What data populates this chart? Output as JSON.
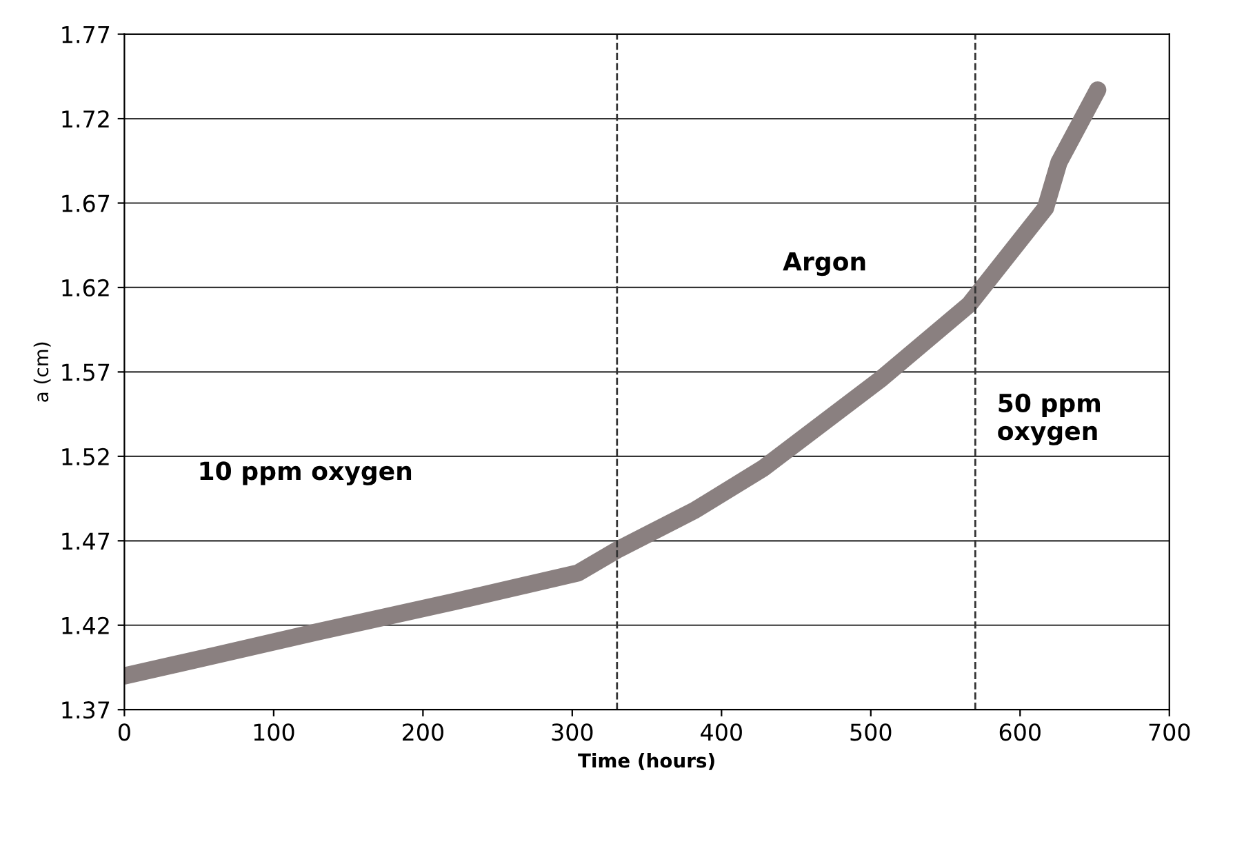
{
  "chart_data": {
    "type": "line",
    "xlabel": "Time (hours)",
    "ylabel": "a (cm)",
    "x": [
      0,
      60,
      129,
      221,
      304,
      331,
      382,
      428,
      507,
      566,
      617,
      626,
      652
    ],
    "series": [
      {
        "color": "#8a8080",
        "values": [
          1.39,
          1.402,
          1.416,
          1.434,
          1.451,
          1.465,
          1.488,
          1.513,
          1.566,
          1.61,
          1.667,
          1.694,
          1.737
        ]
      }
    ],
    "xlim": [
      0,
      700
    ],
    "xticks": [
      0,
      100,
      200,
      300,
      400,
      500,
      600,
      700
    ],
    "ylim": [
      1.37,
      1.77
    ],
    "yticks": [
      {
        "value": 1.37,
        "label": "1.37"
      },
      {
        "value": 1.42,
        "label": "1.42"
      },
      {
        "value": 1.47,
        "label": "1.47"
      },
      {
        "value": 1.52,
        "label": "1.52"
      },
      {
        "value": 1.57,
        "label": "1.57"
      },
      {
        "value": 1.62,
        "label": "1.62"
      },
      {
        "value": 1.67,
        "label": "1.67"
      },
      {
        "value": 1.72,
        "label": "1.72"
      },
      {
        "value": 1.77,
        "label": "1.77"
      }
    ],
    "grid": "y",
    "line_style": "solid",
    "ref_lines": [
      {
        "axis": "x",
        "value": 330,
        "color": "#333333",
        "line_style": "dashed"
      },
      {
        "axis": "x",
        "value": 570,
        "color": "#333333",
        "line_style": "dashed"
      }
    ],
    "annotations": [
      "10 ppm oxygen",
      "Argon",
      "50 ppm\noxygen"
    ]
  }
}
